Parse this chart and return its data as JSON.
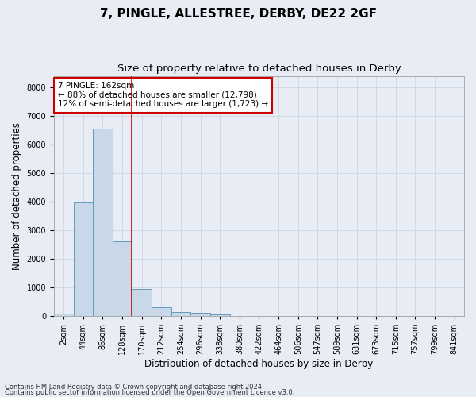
{
  "title_line1": "7, PINGLE, ALLESTREE, DERBY, DE22 2GF",
  "title_line2": "Size of property relative to detached houses in Derby",
  "xlabel": "Distribution of detached houses by size in Derby",
  "ylabel": "Number of detached properties",
  "bar_values": [
    75,
    3980,
    6550,
    2600,
    950,
    310,
    130,
    100,
    65,
    0,
    0,
    0,
    0,
    0,
    0,
    0,
    0,
    0,
    0,
    0,
    0
  ],
  "bar_labels": [
    "2sqm",
    "44sqm",
    "86sqm",
    "128sqm",
    "170sqm",
    "212sqm",
    "254sqm",
    "296sqm",
    "338sqm",
    "380sqm",
    "422sqm",
    "464sqm",
    "506sqm",
    "547sqm",
    "589sqm",
    "631sqm",
    "673sqm",
    "715sqm",
    "757sqm",
    "799sqm",
    "841sqm"
  ],
  "bar_color": "#c8d8e8",
  "bar_edge_color": "#6699bb",
  "grid_color": "#d0d8e8",
  "background_color": "#e8edf5",
  "vline_color": "#cc0000",
  "vline_x": 3.5,
  "annotation_text": "7 PINGLE: 162sqm\n← 88% of detached houses are smaller (12,798)\n12% of semi-detached houses are larger (1,723) →",
  "annotation_box_color": "#ffffff",
  "annotation_box_edge": "#cc0000",
  "annotation_fontsize": 7.5,
  "ylim": [
    0,
    8400
  ],
  "yticks": [
    0,
    1000,
    2000,
    3000,
    4000,
    5000,
    6000,
    7000,
    8000
  ],
  "footer_line1": "Contains HM Land Registry data © Crown copyright and database right 2024.",
  "footer_line2": "Contains public sector information licensed under the Open Government Licence v3.0.",
  "title_fontsize": 11,
  "subtitle_fontsize": 9.5,
  "axis_label_fontsize": 8.5,
  "ylabel_fontsize": 8.5,
  "tick_fontsize": 7,
  "footer_fontsize": 6
}
